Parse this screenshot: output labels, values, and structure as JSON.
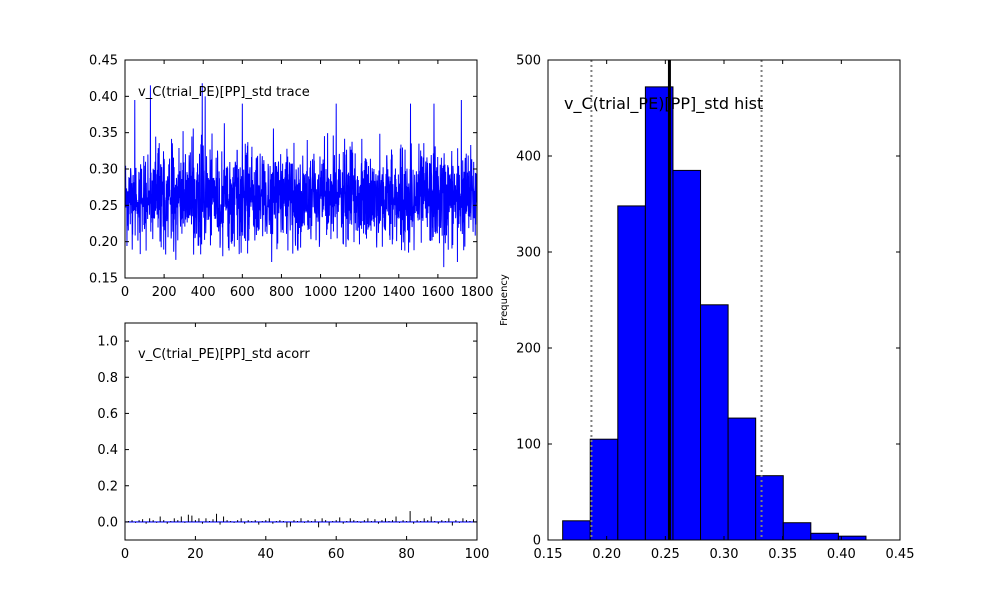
{
  "chart_data": [
    {
      "type": "line",
      "title": "v_C(trial_PE)[PP]_std trace",
      "xlim": [
        0,
        1800
      ],
      "ylim": [
        0.15,
        0.45
      ],
      "xticks": [
        "0",
        "200",
        "400",
        "600",
        "800",
        "1000",
        "1200",
        "1400",
        "1600",
        "1800"
      ],
      "yticks": [
        "0.15",
        "0.20",
        "0.25",
        "0.30",
        "0.35",
        "0.40",
        "0.45"
      ],
      "series_color": "#0000ff",
      "samples": 1800,
      "trace_summary": {
        "mean": 0.26,
        "min": 0.16,
        "max": 0.42,
        "typical_low": 0.21,
        "typical_high": 0.31
      },
      "spikes": [
        {
          "x": 50,
          "y": 0.395
        },
        {
          "x": 130,
          "y": 0.415
        },
        {
          "x": 395,
          "y": 0.418
        },
        {
          "x": 410,
          "y": 0.4
        },
        {
          "x": 600,
          "y": 0.39
        },
        {
          "x": 1080,
          "y": 0.39
        },
        {
          "x": 1460,
          "y": 0.39
        },
        {
          "x": 1580,
          "y": 0.39
        },
        {
          "x": 1720,
          "y": 0.395
        },
        {
          "x": 500,
          "y": 0.18
        },
        {
          "x": 750,
          "y": 0.172
        },
        {
          "x": 1450,
          "y": 0.185
        },
        {
          "x": 1630,
          "y": 0.165
        },
        {
          "x": 1700,
          "y": 0.172
        },
        {
          "x": 260,
          "y": 0.175
        }
      ]
    },
    {
      "type": "bar",
      "title": "v_C(trial_PE)[PP]_std acorr",
      "xlim": [
        0,
        100
      ],
      "ylim": [
        -0.1,
        1.1
      ],
      "xticks": [
        "0",
        "20",
        "40",
        "60",
        "80",
        "100"
      ],
      "yticks": [
        "0.0",
        "0.2",
        "0.4",
        "0.6",
        "0.8",
        "1.0"
      ],
      "lags": [
        1,
        2,
        3,
        4,
        5,
        6,
        7,
        8,
        9,
        10,
        11,
        12,
        13,
        14,
        15,
        16,
        17,
        18,
        19,
        20,
        21,
        22,
        23,
        24,
        25,
        26,
        27,
        28,
        29,
        30,
        31,
        32,
        33,
        34,
        35,
        36,
        37,
        38,
        39,
        40,
        41,
        42,
        43,
        44,
        45,
        46,
        47,
        48,
        49,
        50,
        51,
        52,
        53,
        54,
        55,
        56,
        57,
        58,
        59,
        60,
        61,
        62,
        63,
        64,
        65,
        66,
        67,
        68,
        69,
        70,
        71,
        72,
        73,
        74,
        75,
        76,
        77,
        78,
        79,
        80,
        81,
        82,
        83,
        84,
        85,
        86,
        87,
        88,
        89,
        90,
        91,
        92,
        93,
        94,
        95,
        96,
        97,
        98,
        99
      ],
      "values": [
        0.005,
        0.01,
        -0.005,
        0.01,
        0.015,
        -0.01,
        0.02,
        0.01,
        -0.005,
        0.03,
        0.01,
        -0.01,
        0.005,
        0.02,
        0.01,
        0.03,
        -0.005,
        0.04,
        0.035,
        0.01,
        0.02,
        -0.01,
        0.02,
        0.005,
        0.015,
        0.045,
        -0.015,
        0.03,
        0.01,
        0.005,
        -0.005,
        0.01,
        0.02,
        -0.01,
        0.01,
        0.005,
        0.01,
        -0.015,
        0.005,
        0.01,
        0.02,
        -0.01,
        0.005,
        0.01,
        0.005,
        -0.03,
        -0.025,
        0.01,
        0.005,
        0.02,
        -0.005,
        0.01,
        0.005,
        0.015,
        -0.03,
        0.02,
        0.01,
        -0.02,
        0.005,
        0.01,
        0.025,
        -0.01,
        0.005,
        0.02,
        0.01,
        0.005,
        -0.005,
        0.01,
        0.02,
        0.005,
        0.015,
        -0.01,
        0.01,
        0.02,
        0.005,
        0.01,
        0.03,
        -0.005,
        0.01,
        0.005,
        0.06,
        -0.01,
        0.01,
        0.005,
        0.02,
        0.01,
        0.03,
        0.005,
        -0.01,
        0.01,
        0.005,
        0.02,
        -0.02,
        0.01,
        -0.005,
        0.02,
        0.01,
        0.005,
        0.015
      ],
      "line_color": "#0000ff",
      "bar_color": "#000000"
    },
    {
      "type": "bar",
      "title": "v_C(trial_PE)[PP]_std hist",
      "xlabel": "",
      "ylabel": "Frequency",
      "xlim": [
        0.15,
        0.45
      ],
      "ylim": [
        0,
        500
      ],
      "xticks": [
        "0.15",
        "0.20",
        "0.25",
        "0.30",
        "0.35",
        "0.40",
        "0.45"
      ],
      "yticks": [
        "0",
        "100",
        "200",
        "300",
        "400",
        "500"
      ],
      "bin_edges": [
        0.1625,
        0.186,
        0.2095,
        0.233,
        0.2565,
        0.28,
        0.3035,
        0.327,
        0.3505,
        0.374,
        0.3975,
        0.421
      ],
      "counts": [
        20,
        105,
        348,
        472,
        385,
        245,
        127,
        67,
        18,
        7,
        4
      ],
      "bar_color": "#0000ff",
      "mean_line": 0.2535,
      "interval_lines": [
        0.187,
        0.332
      ]
    }
  ]
}
